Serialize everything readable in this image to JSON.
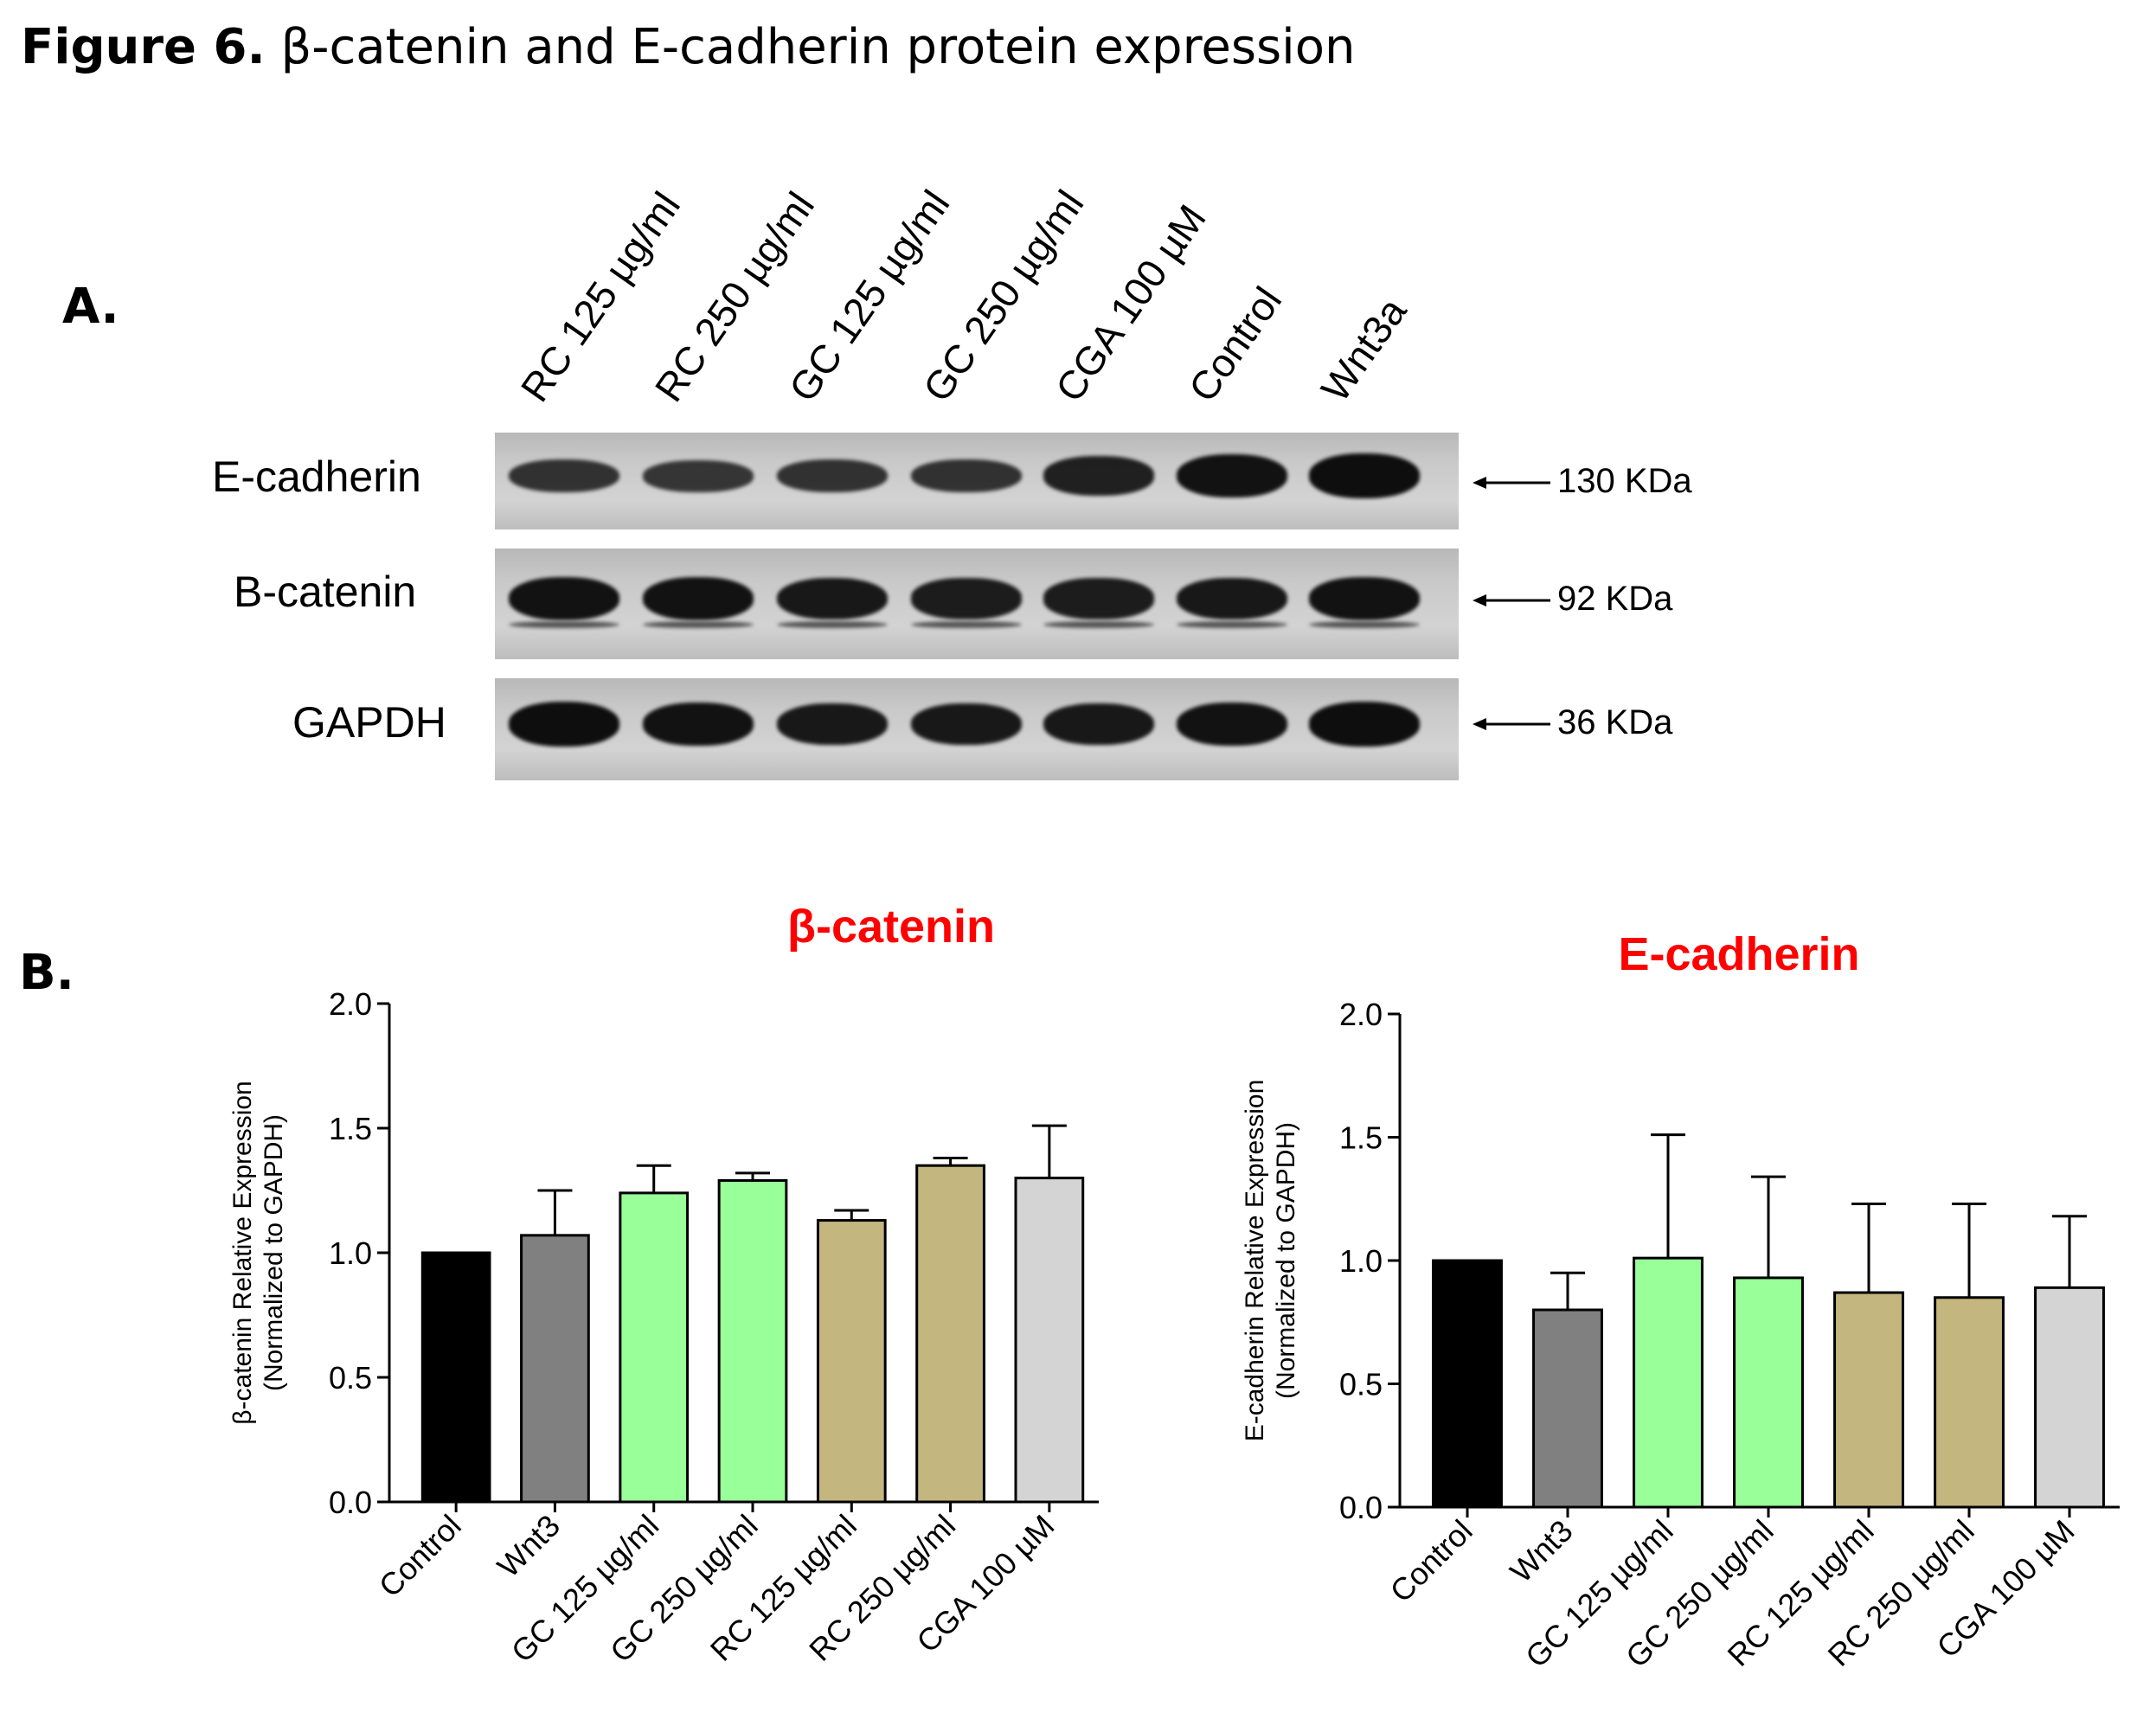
{
  "figure": {
    "title_bold": "Figure 6.",
    "title_rest": " β-catenin and E-cadherin protein expression"
  },
  "panel_a": {
    "letter": "A.",
    "lanes": [
      "RC 125 µg/ml",
      "RC 250 µg/ml",
      "GC 125 µg/ml",
      "GC 250 µg/ml",
      "CGA 100 µM",
      "Control",
      "Wnt3a"
    ],
    "blots": [
      {
        "label": "E-cadherin",
        "size": "130 KDa",
        "band_intensity": [
          0.55,
          0.5,
          0.55,
          0.55,
          0.75,
          0.9,
          0.95
        ]
      },
      {
        "label": "B-catenin",
        "size": "92 KDa",
        "band_intensity": [
          0.9,
          0.9,
          0.85,
          0.8,
          0.8,
          0.85,
          0.9
        ]
      },
      {
        "label": "GAPDH",
        "size": "36 KDa",
        "band_intensity": [
          0.95,
          0.9,
          0.85,
          0.85,
          0.85,
          0.9,
          0.95
        ]
      }
    ],
    "colors": {
      "membrane": "#c9c9c9",
      "band": "#0b0b0b"
    }
  },
  "panel_b": {
    "letter": "B."
  },
  "chart_data": [
    {
      "type": "bar",
      "title": "β-catenin",
      "title_color": "#ff0000",
      "ylabel_line1": "β-catenin Relative Expression",
      "ylabel_line2": "(Normalized to GAPDH)",
      "categories": [
        "Control",
        "Wnt3",
        "GC 125 µg/ml",
        "GC 250 µg/ml",
        "RC 125 µg/ml",
        "RC 250 µg/ml",
        "CGA 100 µM"
      ],
      "values": [
        1.0,
        1.07,
        1.24,
        1.29,
        1.13,
        1.35,
        1.3
      ],
      "errors": [
        0.0,
        0.18,
        0.11,
        0.03,
        0.04,
        0.03,
        0.21
      ],
      "colors": [
        "#000000",
        "#808080",
        "#99ff99",
        "#99ff99",
        "#c3b67f",
        "#c3b67f",
        "#d4d4d4"
      ],
      "ylim": [
        0,
        2.0
      ],
      "yticks": [
        "0.0",
        "0.5",
        "1.0",
        "1.5",
        "2.0"
      ]
    },
    {
      "type": "bar",
      "title": "E-cadherin",
      "title_color": "#ff0000",
      "ylabel_line1": "E-cadherin Relative Expression",
      "ylabel_line2": "(Normalized to GAPDH)",
      "categories": [
        "Control",
        "Wnt3",
        "GC 125 µg/ml",
        "GC 250 µg/ml",
        "RC 125 µg/ml",
        "RC 250 µg/ml",
        "CGA 100 µM"
      ],
      "values": [
        1.0,
        0.8,
        1.01,
        0.93,
        0.87,
        0.85,
        0.89
      ],
      "errors": [
        0.0,
        0.15,
        0.5,
        0.41,
        0.36,
        0.38,
        0.29
      ],
      "colors": [
        "#000000",
        "#808080",
        "#99ff99",
        "#99ff99",
        "#c3b67f",
        "#c3b67f",
        "#d4d4d4"
      ],
      "ylim": [
        0,
        2.0
      ],
      "yticks": [
        "0.0",
        "0.5",
        "1.0",
        "1.5",
        "2.0"
      ]
    }
  ]
}
